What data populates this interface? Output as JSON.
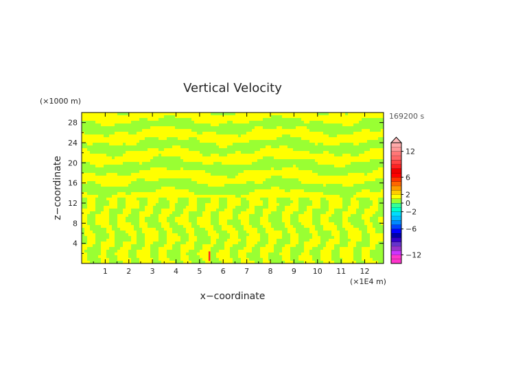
{
  "chart_data": {
    "type": "heatmap",
    "title": "Vertical Velocity",
    "xlabel": "x−coordinate",
    "ylabel": "z−coordinate",
    "x_unit": "(×1E4 m)",
    "y_unit": "(×1000 m)",
    "time_label": "169200 s",
    "xlim": [
      0,
      12.8
    ],
    "ylim": [
      0,
      30
    ],
    "x_ticks": [
      "1",
      "2",
      "3",
      "4",
      "5",
      "6",
      "7",
      "8",
      "9",
      "10",
      "11",
      "12"
    ],
    "y_ticks": [
      "4",
      "8",
      "12",
      "16",
      "20",
      "24",
      "28"
    ],
    "colorbar": {
      "tick_labels": [
        "12",
        "6",
        "2",
        "0",
        "−2",
        "−6",
        "−12"
      ],
      "levels": [
        -14,
        -13,
        -12,
        -11,
        -10,
        -9,
        -8,
        -7,
        -6,
        -5,
        -4,
        -3,
        -2,
        -1,
        0,
        1,
        2,
        3,
        4,
        5,
        6,
        7,
        8,
        9,
        10,
        11,
        12,
        13,
        14
      ],
      "colors": {
        "-14": "#ff33cc",
        "-13": "#ff33cc",
        "-12": "#cc33ff",
        "-11": "#9933cc",
        "-10": "#6633cc",
        "-9": "#3300cc",
        "-8": "#0000aa",
        "-7": "#0000ff",
        "-6": "#0044ff",
        "-5": "#0088ff",
        "-4": "#00bbff",
        "-3": "#00ddff",
        "-2": "#00ffcc",
        "-1": "#33ff99",
        "0": "#99ff33",
        "1": "#ffff00",
        "2": "#ffcc00",
        "3": "#ff9900",
        "4": "#ff6600",
        "5": "#ff3300",
        "6": "#ff0000",
        "7": "#ee0000",
        "8": "#ff2222",
        "9": "#ff4444",
        "10": "#ff6666",
        "11": "#ff7777",
        "12": "#ff9999",
        "13": "#ffaaaa",
        "14": "#ffbbbb"
      }
    },
    "field_description_colors": {
      "negative_small": "#99ff33",
      "positive_small": "#ffff00",
      "peak": "#ff2222"
    }
  }
}
